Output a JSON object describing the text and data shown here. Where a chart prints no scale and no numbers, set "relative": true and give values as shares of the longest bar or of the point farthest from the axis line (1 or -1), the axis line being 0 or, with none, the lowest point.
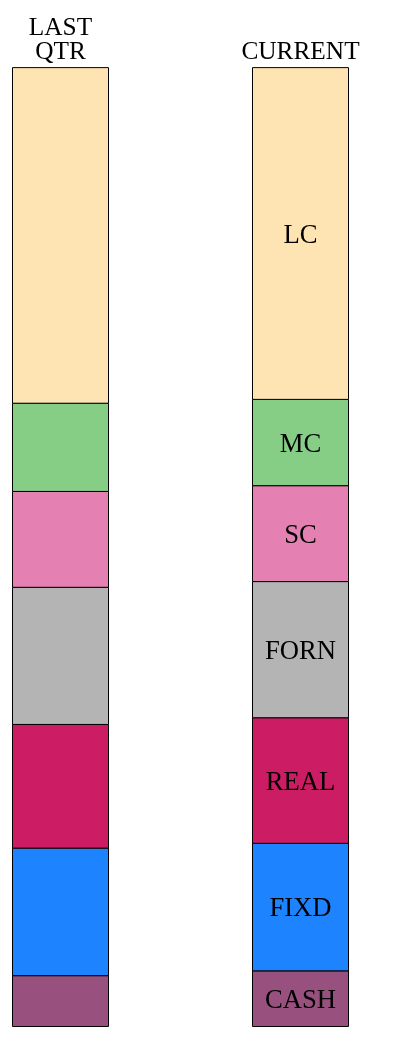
{
  "chart_data": {
    "type": "bar",
    "stacked": true,
    "relative": true,
    "categories": [
      "LAST\nQTR",
      "CURRENT"
    ],
    "series": [
      {
        "name": "CASH",
        "color": "#98507f",
        "values": [
          0.053,
          0.058
        ]
      },
      {
        "name": "FIXD",
        "color": "#1e83ff",
        "values": [
          0.133,
          0.133
        ]
      },
      {
        "name": "REAL",
        "color": "#cc1c63",
        "values": [
          0.129,
          0.131
        ]
      },
      {
        "name": "FORN",
        "color": "#b4b4b4",
        "values": [
          0.143,
          0.142
        ]
      },
      {
        "name": "SC",
        "color": "#e481b2",
        "values": [
          0.1,
          0.1
        ]
      },
      {
        "name": "MC",
        "color": "#86cd86",
        "values": [
          0.092,
          0.09
        ]
      },
      {
        "name": "LC",
        "color": "#fde4b2",
        "values": [
          0.35,
          0.346
        ]
      }
    ]
  }
}
